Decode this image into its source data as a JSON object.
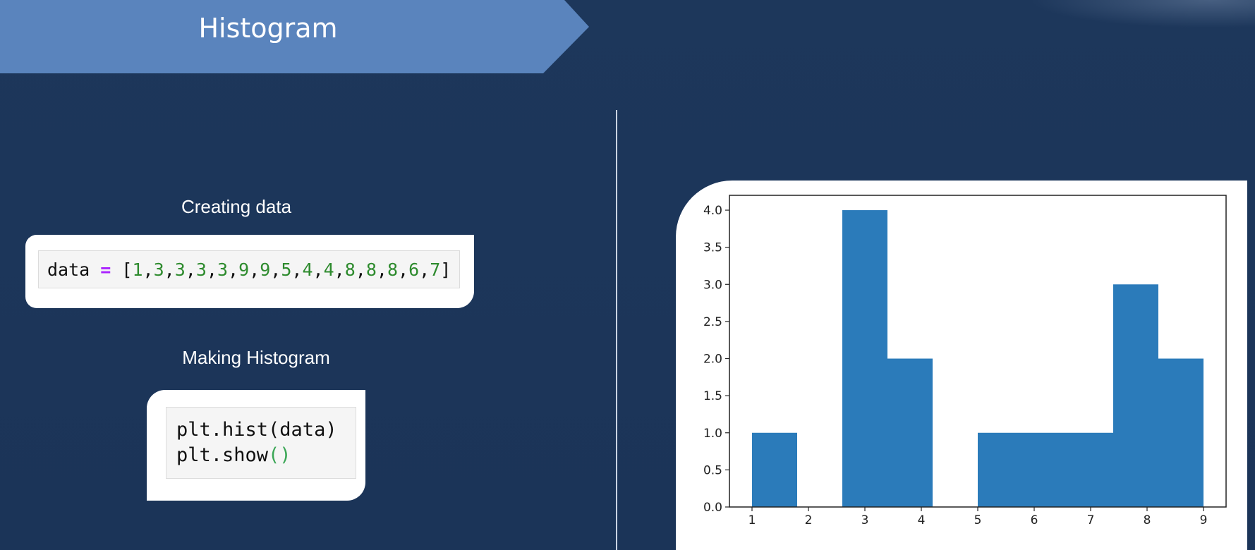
{
  "header": {
    "title": "Histogram"
  },
  "left": {
    "creating_label": "Creating data",
    "making_label": "Making Histogram",
    "code_data": {
      "variable": "data",
      "operator": "=",
      "open_bracket": "[",
      "close_bracket": "]",
      "values": [
        "1",
        "3",
        "3",
        "3",
        "3",
        "9",
        "9",
        "5",
        "4",
        "4",
        "8",
        "8",
        "8",
        "6",
        "7"
      ]
    },
    "code_hist": {
      "line1": "plt.hist(data)",
      "line2_prefix": "plt.show",
      "line2_parens": "()"
    }
  },
  "colors": {
    "background": "#1c365a",
    "banner": "#5a84bd",
    "bar": "#2b7bba"
  },
  "chart_data": {
    "type": "bar",
    "title": "",
    "xlabel": "",
    "ylabel": "",
    "bins": [
      {
        "x0": 1.0,
        "x1": 1.8,
        "count": 1
      },
      {
        "x0": 1.8,
        "x1": 2.6,
        "count": 0
      },
      {
        "x0": 2.6,
        "x1": 3.4,
        "count": 4
      },
      {
        "x0": 3.4,
        "x1": 4.2,
        "count": 2
      },
      {
        "x0": 4.2,
        "x1": 5.0,
        "count": 0
      },
      {
        "x0": 5.0,
        "x1": 5.8,
        "count": 1
      },
      {
        "x0": 5.8,
        "x1": 6.6,
        "count": 1
      },
      {
        "x0": 6.6,
        "x1": 7.4,
        "count": 1
      },
      {
        "x0": 7.4,
        "x1": 8.2,
        "count": 3
      },
      {
        "x0": 8.2,
        "x1": 9.0,
        "count": 2
      }
    ],
    "xticks": [
      1,
      2,
      3,
      4,
      5,
      6,
      7,
      8,
      9
    ],
    "yticks": [
      "0.0",
      "0.5",
      "1.0",
      "1.5",
      "2.0",
      "2.5",
      "3.0",
      "3.5",
      "4.0"
    ],
    "xlim": [
      0.6,
      9.4
    ],
    "ylim": [
      0,
      4.2
    ],
    "grid": false,
    "legend": "none"
  }
}
